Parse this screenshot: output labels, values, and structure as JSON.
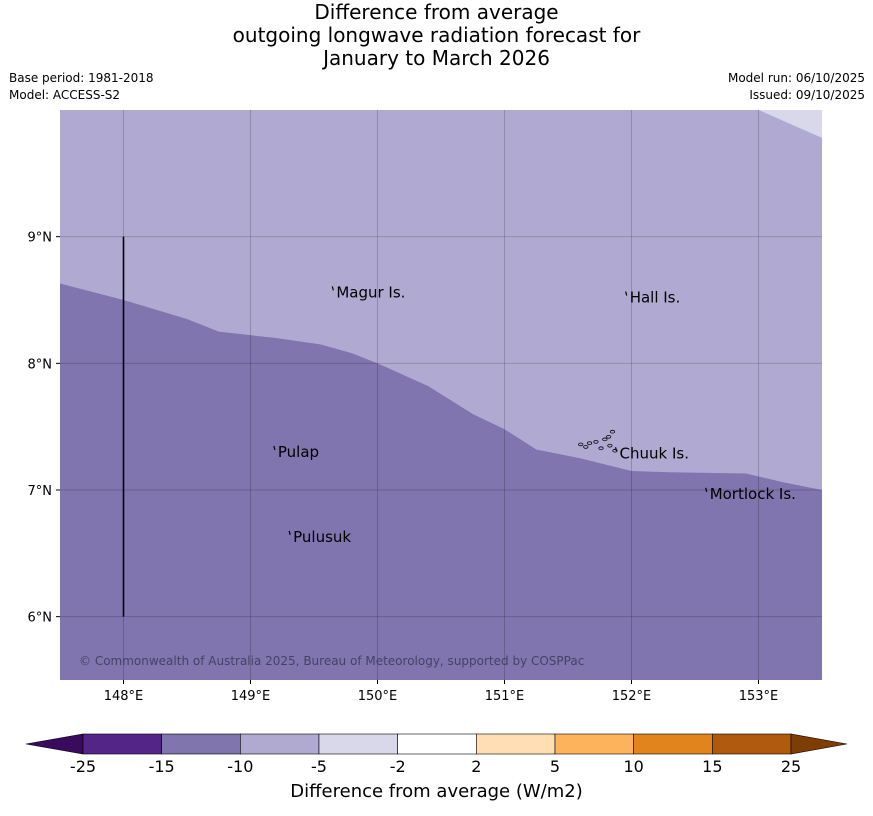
{
  "title": {
    "line1": "Difference from average",
    "line2": "outgoing longwave radiation forecast for",
    "line3": "January to March 2026"
  },
  "meta": {
    "base_period": "Base period: 1981-2018",
    "model": "Model: ACCESS-S2",
    "model_run": "Model run: 06/10/2025",
    "issued": "Issued: 09/10/2025"
  },
  "map": {
    "lon_range": [
      147.5,
      153.5
    ],
    "lat_range": [
      5.5,
      10.0
    ],
    "lon_ticks": [
      {
        "value": 148,
        "label": "148°E"
      },
      {
        "value": 149,
        "label": "149°E"
      },
      {
        "value": 150,
        "label": "150°E"
      },
      {
        "value": 151,
        "label": "151°E"
      },
      {
        "value": 152,
        "label": "152°E"
      },
      {
        "value": 153,
        "label": "153°E"
      }
    ],
    "lat_ticks": [
      {
        "value": 9,
        "label": "9°N"
      },
      {
        "value": 8,
        "label": "8°N"
      },
      {
        "value": 7,
        "label": "7°N"
      },
      {
        "value": 6,
        "label": "6°N"
      }
    ],
    "places": [
      {
        "name": "Magur Is.",
        "lon": 149.66,
        "lat": 8.56
      },
      {
        "name": "Hall Is.",
        "lon": 151.97,
        "lat": 8.52
      },
      {
        "name": "Pulap",
        "lon": 149.2,
        "lat": 7.3
      },
      {
        "name": "Chuuk Is.",
        "lon": 151.89,
        "lat": 7.29
      },
      {
        "name": "Pulusuk",
        "lon": 149.32,
        "lat": 6.63
      },
      {
        "name": "Mortlock Is.",
        "lon": 152.6,
        "lat": 6.97
      }
    ],
    "boundary_line": {
      "lon": 148.0,
      "lat_from": 6.0,
      "lat_to": 9.0
    },
    "region_boundaries": {
      "minus15_to_minus10": [
        [
          147.5,
          8.63
        ],
        [
          148.0,
          8.5
        ],
        [
          148.5,
          8.35
        ],
        [
          148.75,
          8.25
        ],
        [
          149.2,
          8.2
        ],
        [
          149.55,
          8.15
        ],
        [
          149.8,
          8.08
        ],
        [
          150.0,
          8.0
        ],
        [
          150.4,
          7.82
        ],
        [
          150.75,
          7.6
        ],
        [
          151.0,
          7.48
        ],
        [
          151.25,
          7.32
        ],
        [
          151.6,
          7.25
        ],
        [
          152.0,
          7.15
        ],
        [
          152.3,
          7.14
        ],
        [
          152.9,
          7.13
        ],
        [
          153.2,
          7.06
        ],
        [
          153.5,
          7.0
        ]
      ],
      "minus10_to_minus5": [
        [
          153.0,
          10.0
        ],
        [
          153.5,
          9.78
        ]
      ]
    },
    "colors": {
      "minus15_to_minus10": "#8075ae",
      "minus10_to_minus5": "#b0aad2",
      "minus5_to_minus2": "#d8d8ea"
    },
    "copyright": "© Commonwealth of Australia 2025, Bureau of Meteorology, supported by COSPPac"
  },
  "legend": {
    "title": "Difference from average (W/m2)",
    "ticks": [
      "-25",
      "-15",
      "-10",
      "-5",
      "-2",
      "2",
      "5",
      "10",
      "15",
      "25"
    ],
    "colors": [
      "#3a0a5e",
      "#532586",
      "#8075ae",
      "#b0aad2",
      "#d8d8ea",
      "#ffffff",
      "#fedeb2",
      "#fcb35b",
      "#e1841c",
      "#b05a0e",
      "#7d3d05"
    ]
  }
}
